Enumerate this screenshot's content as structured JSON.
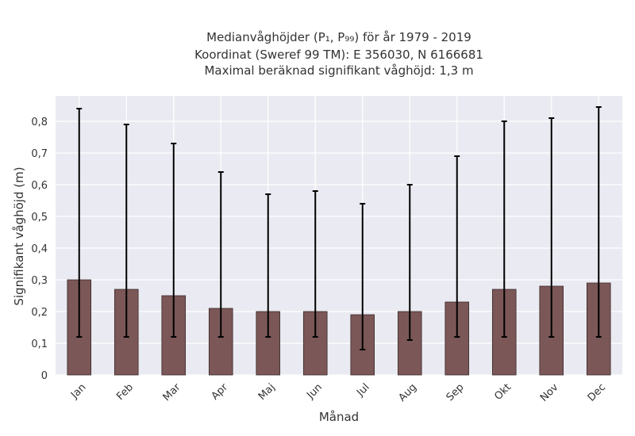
{
  "chart_data": {
    "type": "bar",
    "title_lines": [
      "Medianvåghöjder (P₁, P₉₉) för år 1979 - 2019",
      "Koordinat (Sweref 99 TM): E 356030, N 6166681",
      "Maximal beräknad signifikant våghöjd: 1,3 m"
    ],
    "xlabel": "Månad",
    "ylabel": "Signifikant våghöjd (m)",
    "categories": [
      "Jan",
      "Feb",
      "Mar",
      "Apr",
      "Maj",
      "Jun",
      "Jul",
      "Aug",
      "Sep",
      "Okt",
      "Nov",
      "Dec"
    ],
    "values": [
      0.3,
      0.27,
      0.25,
      0.21,
      0.2,
      0.2,
      0.19,
      0.2,
      0.23,
      0.27,
      0.28,
      0.29
    ],
    "err_low": [
      0.12,
      0.12,
      0.12,
      0.12,
      0.12,
      0.12,
      0.08,
      0.11,
      0.12,
      0.12,
      0.12,
      0.12
    ],
    "err_high": [
      0.84,
      0.79,
      0.73,
      0.64,
      0.57,
      0.58,
      0.54,
      0.6,
      0.69,
      0.8,
      0.81,
      0.845
    ],
    "ylim": [
      0,
      0.88
    ],
    "yticks": [
      0,
      0.1,
      0.2,
      0.3,
      0.4,
      0.5,
      0.6,
      0.7,
      0.8
    ],
    "ytick_labels": [
      "0",
      "0,1",
      "0,2",
      "0,3",
      "0,4",
      "0,5",
      "0,6",
      "0,7",
      "0,8"
    ],
    "grid": true,
    "colors": {
      "bar": "#7b5757",
      "bar_edge": "#3a2a2a",
      "error_bar": "#000000",
      "plot_background": "#eaeaf2",
      "grid": "#ffffff"
    }
  }
}
